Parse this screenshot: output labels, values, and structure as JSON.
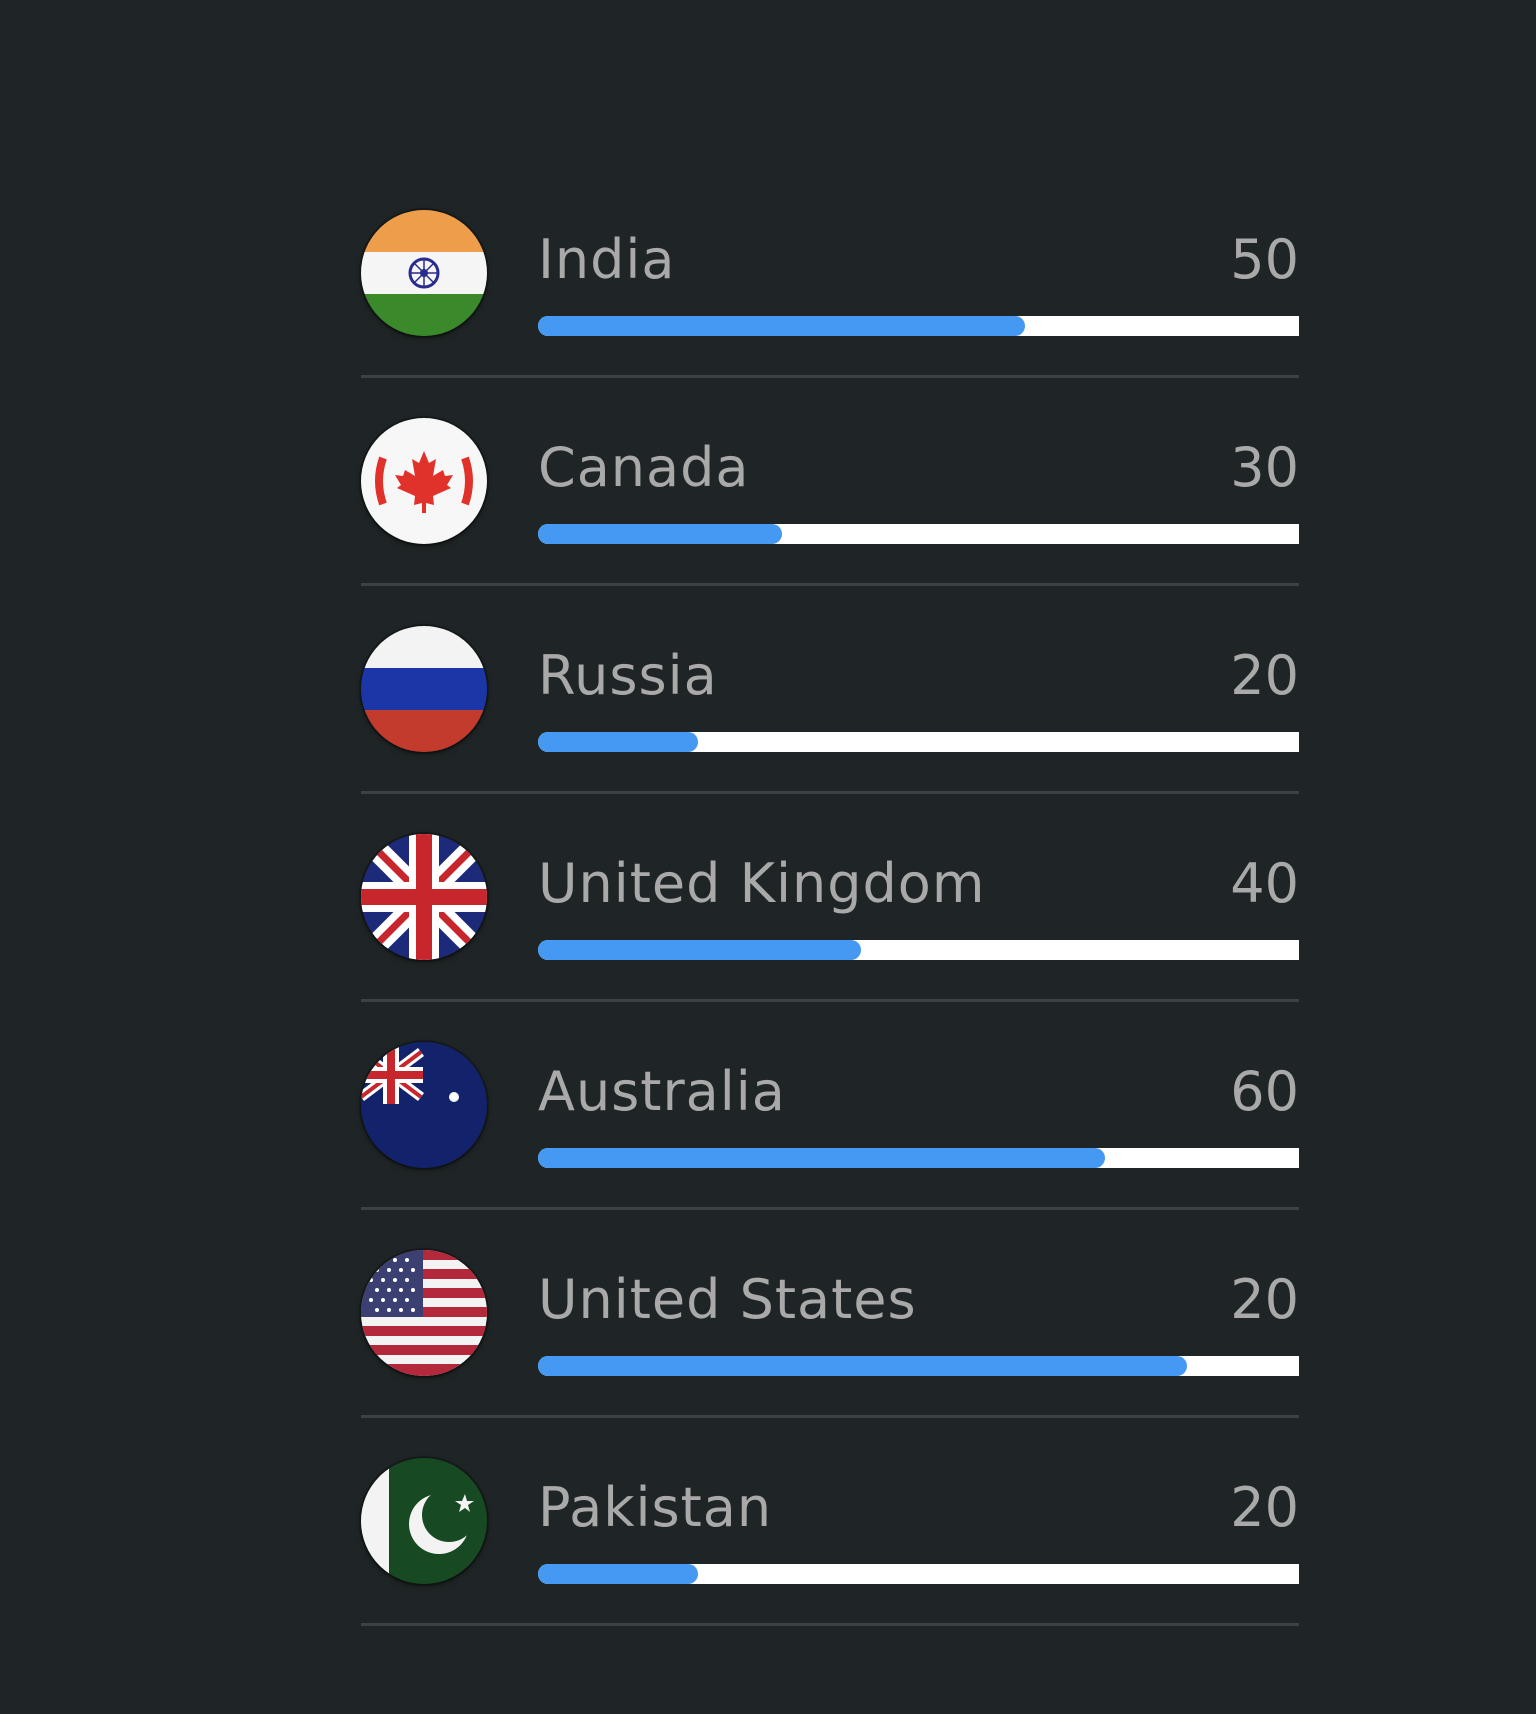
{
  "countries": [
    {
      "name": "India",
      "value": "50",
      "progress_percent": 64,
      "icon": "india-flag-icon"
    },
    {
      "name": "Canada",
      "value": "30",
      "progress_percent": 32,
      "icon": "canada-flag-icon"
    },
    {
      "name": "Russia",
      "value": "20",
      "progress_percent": 21,
      "icon": "russia-flag-icon"
    },
    {
      "name": "United Kingdom",
      "value": "40",
      "progress_percent": 42.5,
      "icon": "uk-flag-icon"
    },
    {
      "name": "Australia",
      "value": "60",
      "progress_percent": 74.5,
      "icon": "australia-flag-icon"
    },
    {
      "name": "United States",
      "value": "20",
      "progress_percent": 85.3,
      "icon": "us-flag-icon"
    },
    {
      "name": "Pakistan",
      "value": "20",
      "progress_percent": 21,
      "icon": "pakistan-flag-icon"
    }
  ],
  "colors": {
    "background": "#1f2526",
    "text": "#a9a9a9",
    "progress_fill": "#4599f2",
    "progress_track": "#ffffff",
    "divider": "#3b4244"
  }
}
